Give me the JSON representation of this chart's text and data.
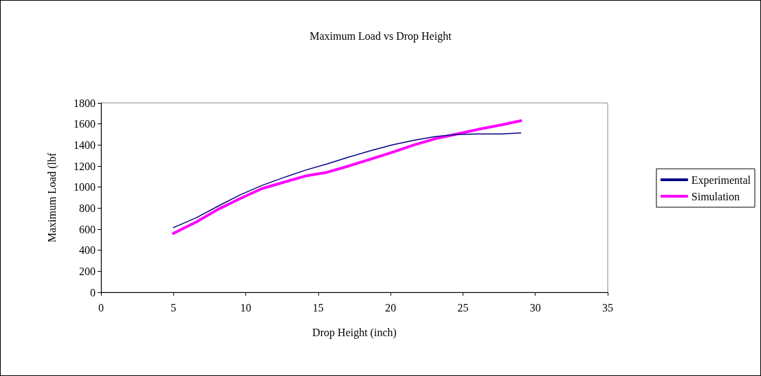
{
  "chart_data": {
    "type": "line",
    "title": "Maximum Load vs Drop Height",
    "xlabel": "Drop Height (inch)",
    "ylabel": "Maximum Load (lbf",
    "xlim": [
      0,
      35
    ],
    "xticks": [
      0,
      5,
      10,
      15,
      20,
      25,
      30,
      35
    ],
    "ylim": [
      0,
      1800
    ],
    "yticks": [
      0,
      200,
      400,
      600,
      800,
      1000,
      1200,
      1400,
      1600,
      1800
    ],
    "grid": false,
    "legend": "right",
    "marker": "none",
    "series": [
      {
        "name": "Experimental",
        "color": "#000080",
        "x": [
          5,
          6.6,
          8.1,
          9.6,
          11.1,
          12.6,
          14.1,
          15.6,
          17.1,
          18.6,
          20.1,
          21.6,
          23.1,
          24.6,
          26.1,
          27.6,
          29
        ],
        "values": [
          615,
          710,
          820,
          925,
          1015,
          1090,
          1160,
          1220,
          1285,
          1345,
          1400,
          1445,
          1480,
          1500,
          1505,
          1505,
          1515
        ]
      },
      {
        "name": "Simulation",
        "color": "#ff00ff",
        "x": [
          5,
          6.6,
          8.1,
          9.6,
          11.1,
          12.6,
          14.1,
          15.6,
          17.1,
          18.6,
          20.1,
          21.6,
          23.1,
          24.6,
          26.1,
          27.6,
          29
        ],
        "values": [
          560,
          670,
          790,
          890,
          985,
          1045,
          1105,
          1140,
          1200,
          1265,
          1330,
          1400,
          1460,
          1505,
          1550,
          1590,
          1630
        ]
      }
    ]
  }
}
